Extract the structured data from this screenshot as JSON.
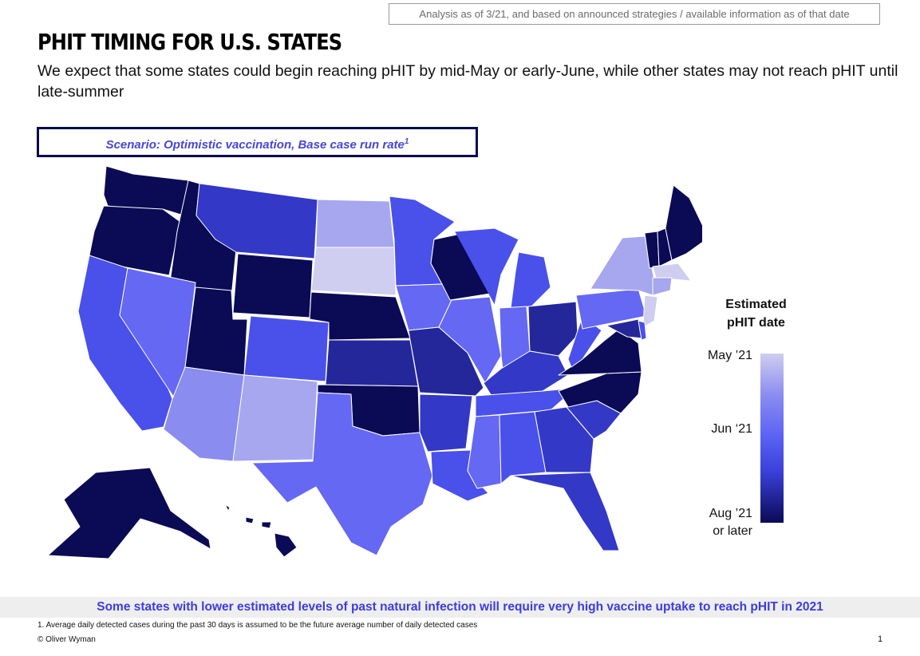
{
  "header": {
    "note": "Analysis as of 3/21, and based on announced strategies / available information as of that date",
    "title": "PHIT TIMING FOR U.S. STATES",
    "subtitle": "We expect that some states could begin reaching pHIT by mid-May or early-June, while other states may not reach pHIT until late-summer"
  },
  "scenario": {
    "text": "Scenario: Optimistic vaccination, Base case run rate",
    "footnote_marker": "1"
  },
  "legend": {
    "title_line1": "Estimated",
    "title_line2": "pHIT date",
    "label_top": "May ’21",
    "label_mid": "Jun ‘21",
    "label_bottom_line1": "Aug ’21",
    "label_bottom_line2": "or later"
  },
  "colors": {
    "may": "#cfcdf0",
    "may_late": "#a6a7ee",
    "jun_early": "#8a8cf0",
    "jun": "#6468f2",
    "jun_late": "#4a50ea",
    "jul": "#3338c7",
    "jul_late": "#24279a",
    "aug": "#0a0a55"
  },
  "map": {
    "states": [
      {
        "id": "WA",
        "tier": "aug"
      },
      {
        "id": "OR",
        "tier": "aug"
      },
      {
        "id": "CA",
        "tier": "jun_late"
      },
      {
        "id": "ID",
        "tier": "aug"
      },
      {
        "id": "NV",
        "tier": "jun"
      },
      {
        "id": "UT",
        "tier": "aug"
      },
      {
        "id": "AZ",
        "tier": "jun_early"
      },
      {
        "id": "MT",
        "tier": "jul"
      },
      {
        "id": "WY",
        "tier": "aug"
      },
      {
        "id": "CO",
        "tier": "jun_late"
      },
      {
        "id": "NM",
        "tier": "may_late"
      },
      {
        "id": "ND",
        "tier": "may_late"
      },
      {
        "id": "SD",
        "tier": "may"
      },
      {
        "id": "NE",
        "tier": "aug"
      },
      {
        "id": "KS",
        "tier": "jul_late"
      },
      {
        "id": "OK",
        "tier": "aug"
      },
      {
        "id": "TX",
        "tier": "jun"
      },
      {
        "id": "MN",
        "tier": "jun_late"
      },
      {
        "id": "IA",
        "tier": "jun"
      },
      {
        "id": "MO",
        "tier": "jul_late"
      },
      {
        "id": "AR",
        "tier": "jul"
      },
      {
        "id": "LA",
        "tier": "jun_late"
      },
      {
        "id": "WI",
        "tier": "aug"
      },
      {
        "id": "IL",
        "tier": "jun"
      },
      {
        "id": "MI",
        "tier": "jun_late"
      },
      {
        "id": "IN",
        "tier": "jun"
      },
      {
        "id": "OH",
        "tier": "jul_late"
      },
      {
        "id": "KY",
        "tier": "jul"
      },
      {
        "id": "TN",
        "tier": "jun_late"
      },
      {
        "id": "MS",
        "tier": "jun"
      },
      {
        "id": "AL",
        "tier": "jun_late"
      },
      {
        "id": "GA",
        "tier": "jul"
      },
      {
        "id": "FL",
        "tier": "jul"
      },
      {
        "id": "SC",
        "tier": "jul"
      },
      {
        "id": "NC",
        "tier": "aug"
      },
      {
        "id": "VA",
        "tier": "aug"
      },
      {
        "id": "WV",
        "tier": "jun_late"
      },
      {
        "id": "PA",
        "tier": "jun"
      },
      {
        "id": "NY",
        "tier": "may_late"
      },
      {
        "id": "VT",
        "tier": "aug"
      },
      {
        "id": "NH",
        "tier": "aug"
      },
      {
        "id": "ME",
        "tier": "aug"
      },
      {
        "id": "MA",
        "tier": "may"
      },
      {
        "id": "CT",
        "tier": "may_late"
      },
      {
        "id": "NJ",
        "tier": "may"
      },
      {
        "id": "MD",
        "tier": "jul_late"
      },
      {
        "id": "DE",
        "tier": "jun_late"
      },
      {
        "id": "AK",
        "tier": "aug"
      },
      {
        "id": "HI",
        "tier": "aug"
      }
    ]
  },
  "banner": "Some states with lower estimated levels of past natural infection will require very high vaccine uptake to reach pHIT in 2021",
  "footnote": "1. Average daily detected cases during the past 30 days is assumed to be the future average number of daily detected cases",
  "copyright": "© Oliver Wyman",
  "page_number": "1"
}
